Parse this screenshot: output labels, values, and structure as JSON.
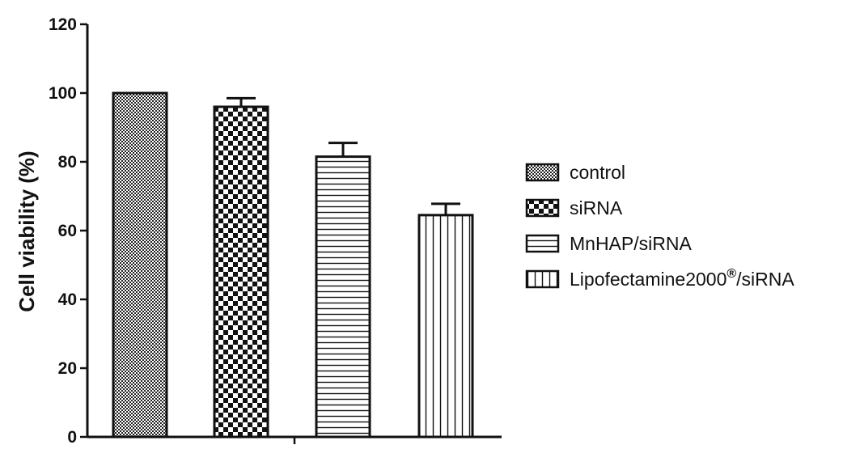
{
  "chart_data": {
    "type": "bar",
    "title": "",
    "xlabel": "",
    "ylabel": "Cell viability (%)",
    "ylim": [
      0,
      120
    ],
    "yticks": [
      0,
      20,
      40,
      60,
      80,
      100,
      120
    ],
    "grid": false,
    "legend_position": "right",
    "series": [
      {
        "name": "control",
        "value": 100,
        "error": 0,
        "pattern": "fine-checker"
      },
      {
        "name": "siRNA",
        "value": 96,
        "error": 2.5,
        "pattern": "checker"
      },
      {
        "name": "MnHAP/siRNA",
        "value": 81.5,
        "error": 4,
        "pattern": "horizontal-lines"
      },
      {
        "name": "Lipofectamine2000",
        "name_superscript": "®",
        "name_suffix": "/siRNA",
        "value": 64.5,
        "error": 3.3,
        "pattern": "vertical-lines"
      }
    ],
    "colors": {
      "stroke": "#111111",
      "fill": "#ffffff"
    }
  }
}
